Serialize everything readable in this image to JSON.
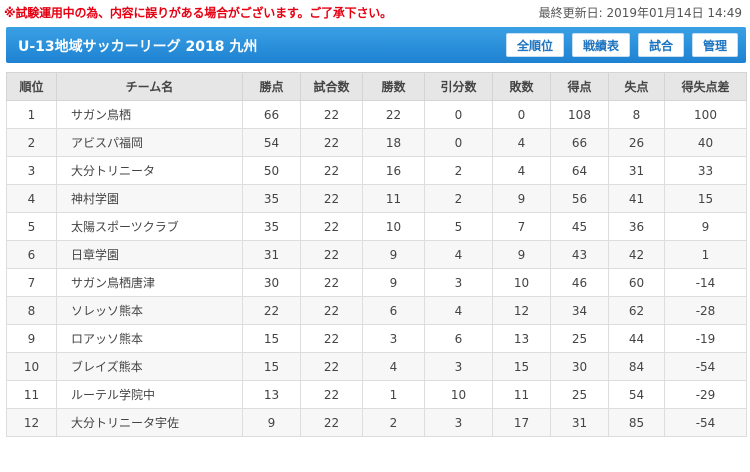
{
  "notice": "※試験運用中の為、内容に誤りがある場合がございます。ご了承下さい。",
  "updated": "最終更新日: 2019年01月14日 14:49",
  "league": {
    "title": "U-13地域サッカーリーグ 2018 九州"
  },
  "nav": {
    "ranking": "全順位",
    "results": "戦績表",
    "matches": "試合",
    "admin": "管理"
  },
  "colors": {
    "header": "#1e82d2",
    "notice": "#e60012",
    "table_header": "#e6e6e6"
  },
  "table": {
    "columns": [
      "順位",
      "チーム名",
      "勝点",
      "試合数",
      "勝数",
      "引分数",
      "敗数",
      "得点",
      "失点",
      "得失点差"
    ],
    "rows": [
      [
        "1",
        "サガン鳥栖",
        "66",
        "22",
        "22",
        "0",
        "0",
        "108",
        "8",
        "100"
      ],
      [
        "2",
        "アビスパ福岡",
        "54",
        "22",
        "18",
        "0",
        "4",
        "66",
        "26",
        "40"
      ],
      [
        "3",
        "大分トリニータ",
        "50",
        "22",
        "16",
        "2",
        "4",
        "64",
        "31",
        "33"
      ],
      [
        "4",
        "神村学園",
        "35",
        "22",
        "11",
        "2",
        "9",
        "56",
        "41",
        "15"
      ],
      [
        "5",
        "太陽スポーツクラブ",
        "35",
        "22",
        "10",
        "5",
        "7",
        "45",
        "36",
        "9"
      ],
      [
        "6",
        "日章学園",
        "31",
        "22",
        "9",
        "4",
        "9",
        "43",
        "42",
        "1"
      ],
      [
        "7",
        "サガン鳥栖唐津",
        "30",
        "22",
        "9",
        "3",
        "10",
        "46",
        "60",
        "-14"
      ],
      [
        "8",
        "ソレッソ熊本",
        "22",
        "22",
        "6",
        "4",
        "12",
        "34",
        "62",
        "-28"
      ],
      [
        "9",
        "ロアッソ熊本",
        "15",
        "22",
        "3",
        "6",
        "13",
        "25",
        "44",
        "-19"
      ],
      [
        "10",
        "ブレイズ熊本",
        "15",
        "22",
        "4",
        "3",
        "15",
        "30",
        "84",
        "-54"
      ],
      [
        "11",
        "ルーテル学院中",
        "13",
        "22",
        "1",
        "10",
        "11",
        "25",
        "54",
        "-29"
      ],
      [
        "12",
        "大分トリニータ宇佐",
        "9",
        "22",
        "2",
        "3",
        "17",
        "31",
        "85",
        "-54"
      ]
    ]
  }
}
